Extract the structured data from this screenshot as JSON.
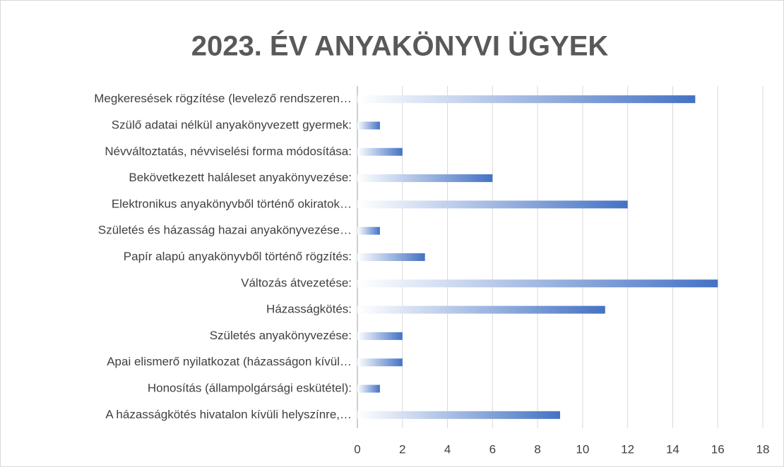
{
  "chart_data": {
    "type": "bar",
    "orientation": "horizontal",
    "title": "2023. ÉV ANYAKÖNYVI ÜGYEK",
    "categories": [
      "Megkeresések rögzítése (levelező rendszeren…",
      "Szülő adatai nélkül anyakönyvezett gyermek:",
      "Névváltoztatás, névviselési forma módosítása:",
      "Bekövetkezett haláleset anyakönyvezése:",
      "Elektronikus anyakönyvből történő okiratok…",
      "Születés és házasság hazai anyakönyvezése…",
      "Papír alapú anyakönyvből történő rögzítés:",
      "Változás átvezetése:",
      "Házasságkötés:",
      "Születés anyakönyvezése:",
      "Apai elismerő nyilatkozat (házasságon kívül…",
      "Honosítás (állampolgársági eskütétel):",
      "A házasságkötés hivatalon kívüli helyszínre,…"
    ],
    "values": [
      15,
      1,
      2,
      6,
      12,
      1,
      3,
      16,
      11,
      2,
      2,
      1,
      9
    ],
    "color": "#4472c4",
    "xlim": [
      0,
      18
    ],
    "xticks": [
      0,
      2,
      4,
      6,
      8,
      10,
      12,
      14,
      16,
      18
    ],
    "grid": true
  }
}
